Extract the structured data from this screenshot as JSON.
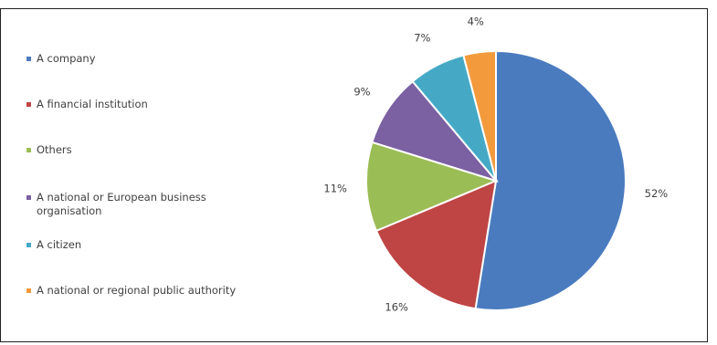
{
  "chart_data": {
    "type": "pie",
    "title": "",
    "legend_position": "left",
    "slices": [
      {
        "label": "A company",
        "value": 52,
        "value_label": "52%",
        "color": "#4a7bbf"
      },
      {
        "label": "A financial institution",
        "value": 16,
        "value_label": "16%",
        "color": "#bf4545"
      },
      {
        "label": "Others",
        "value": 11,
        "value_label": "11%",
        "color": "#9bbd55"
      },
      {
        "label": "A national or European business organisation",
        "value": 9,
        "value_label": "9%",
        "color": "#7b60a2"
      },
      {
        "label": "A citizen",
        "value": 7,
        "value_label": "7%",
        "color": "#45a9c6"
      },
      {
        "label": "A national or regional public authority",
        "value": 4,
        "value_label": "4%",
        "color": "#f39a3c"
      }
    ]
  }
}
